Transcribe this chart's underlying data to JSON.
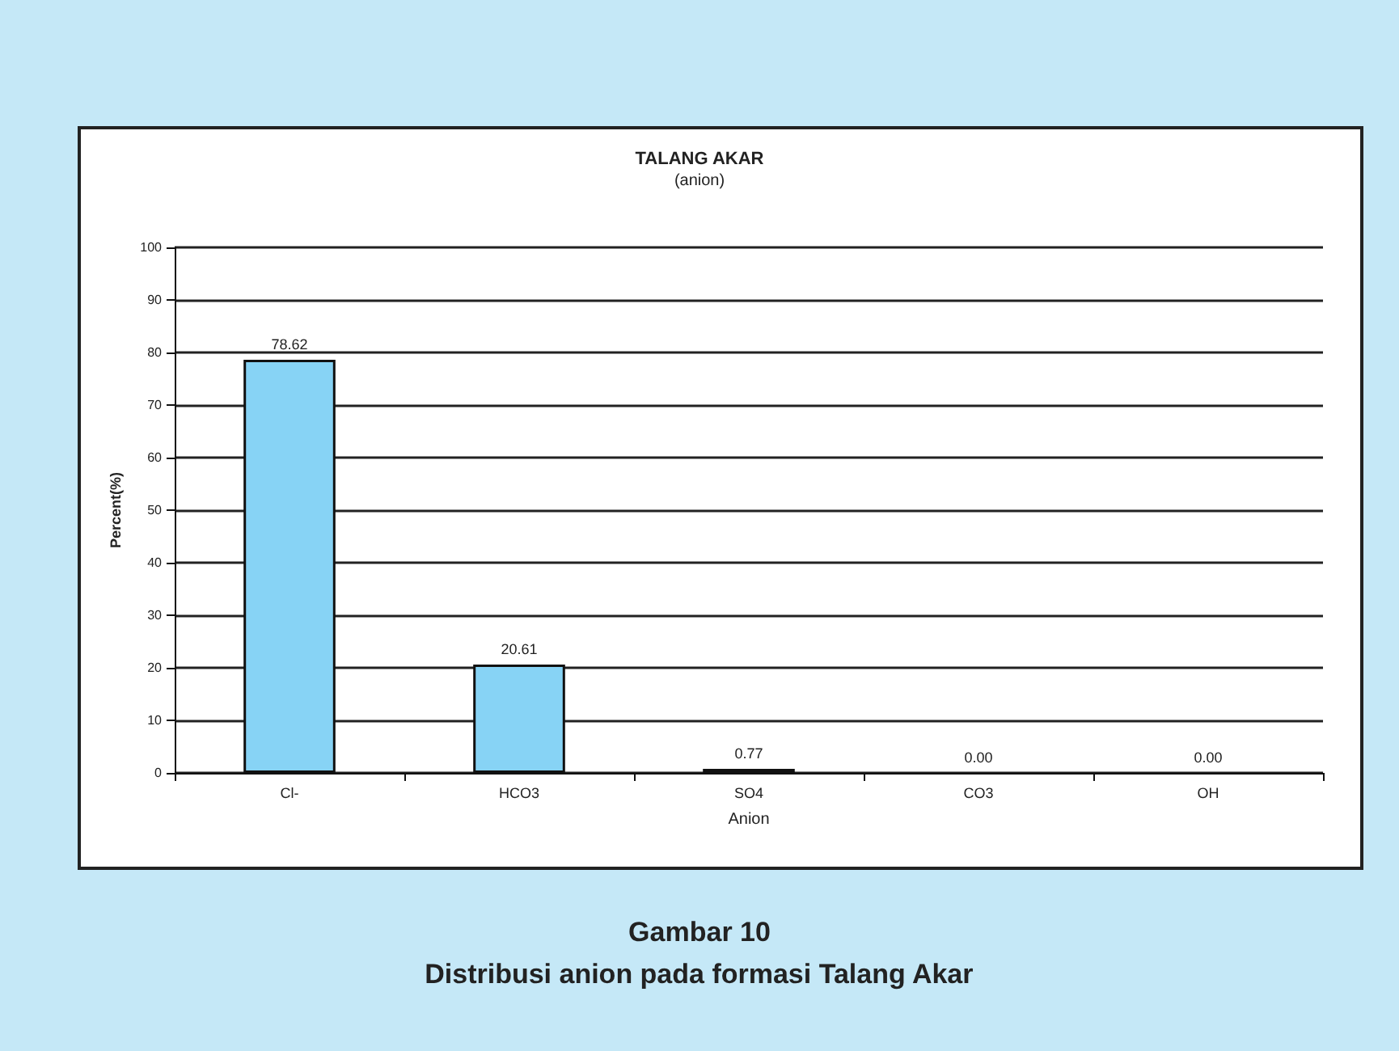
{
  "chart_data": {
    "type": "bar",
    "title": "TALANG AKAR",
    "subtitle": "(anion)",
    "xlabel": "Anion",
    "ylabel": "Percent(%)",
    "categories": [
      "Cl-",
      "HCO3",
      "SO4",
      "CO3",
      "OH"
    ],
    "values": [
      78.62,
      20.61,
      0.77,
      0,
      0
    ],
    "value_labels": [
      "78.62",
      "20.61",
      "0.77",
      "0.00",
      "0.00"
    ],
    "color": "#87d3f5",
    "ylim": [
      0,
      100
    ],
    "yticks": [
      0,
      10,
      20,
      30,
      40,
      50,
      60,
      70,
      80,
      90,
      100
    ],
    "grid": "y",
    "annotations": [
      "Gambar 10",
      "Distribusi anion pada formasi Talang Akar"
    ]
  }
}
